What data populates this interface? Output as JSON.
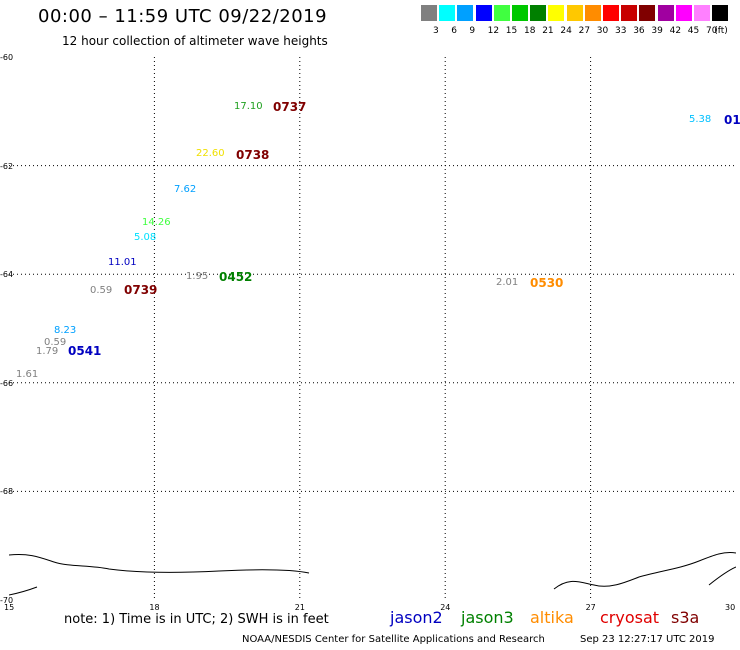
{
  "header": {
    "title": "00:00 – 11:59 UTC 09/22/2019",
    "subtitle": "12 hour collection of altimeter wave heights"
  },
  "colorbar": {
    "colors": [
      "#808080",
      "#00ffff",
      "#00a0ff",
      "#0000ff",
      "#40ff40",
      "#00c800",
      "#008000",
      "#ffff00",
      "#ffc800",
      "#ff8c00",
      "#ff0000",
      "#c80000",
      "#800000",
      "#a000a0",
      "#ff00ff",
      "#ff80ff",
      "#000000"
    ],
    "labels": [
      "3",
      "6",
      "9",
      "12",
      "15",
      "18",
      "21",
      "24",
      "27",
      "30",
      "33",
      "36",
      "39",
      "42",
      "45",
      "70",
      "(ft)"
    ]
  },
  "axes": {
    "lat_labels": [
      "-60",
      "-62",
      "-64",
      "-66",
      "-68",
      "-70"
    ],
    "lon_labels": [
      "15",
      "18",
      "21",
      "24",
      "27",
      "30"
    ]
  },
  "observations": [
    {
      "text": "17.10",
      "color": "#20a020"
    },
    {
      "text": "22.60",
      "color": "#f0e000"
    },
    {
      "text": "7.62",
      "color": "#00a0ff"
    },
    {
      "text": "14.26",
      "color": "#40ff40"
    },
    {
      "text": "5.08",
      "color": "#00e0ff"
    },
    {
      "text": "11.01",
      "color": "#0000c0"
    },
    {
      "text": "0.59",
      "color": "#808080"
    },
    {
      "text": "1.95",
      "color": "#808080"
    },
    {
      "text": "8.23",
      "color": "#00a0ff"
    },
    {
      "text": "0.59",
      "color": "#808080"
    },
    {
      "text": "1.79",
      "color": "#808080"
    },
    {
      "text": "1.61",
      "color": "#808080"
    },
    {
      "text": "2.01",
      "color": "#808080"
    },
    {
      "text": "5.38",
      "color": "#00c0ff"
    }
  ],
  "passes": [
    {
      "text": "0737",
      "color": "#800000"
    },
    {
      "text": "0738",
      "color": "#800000"
    },
    {
      "text": "0739",
      "color": "#800000"
    },
    {
      "text": "0452",
      "color": "#008000"
    },
    {
      "text": "0541",
      "color": "#0000c0"
    },
    {
      "text": "0530",
      "color": "#ff8c00"
    },
    {
      "text": "01",
      "color": "#0000c0"
    }
  ],
  "footer": {
    "note": "note: 1) Time is in UTC; 2) SWH is in feet",
    "legend": [
      {
        "label": "jason2",
        "color": "#0000c0"
      },
      {
        "label": "jason3",
        "color": "#008000"
      },
      {
        "label": "altika",
        "color": "#ff8c00"
      },
      {
        "label": "cryosat",
        "color": "#e00000"
      },
      {
        "label": "s3a",
        "color": "#800000"
      }
    ],
    "credit": "NOAA/NESDIS Center for Satellite Applications and Research",
    "timestamp": "Sep 23 12:27:17 UTC 2019"
  }
}
